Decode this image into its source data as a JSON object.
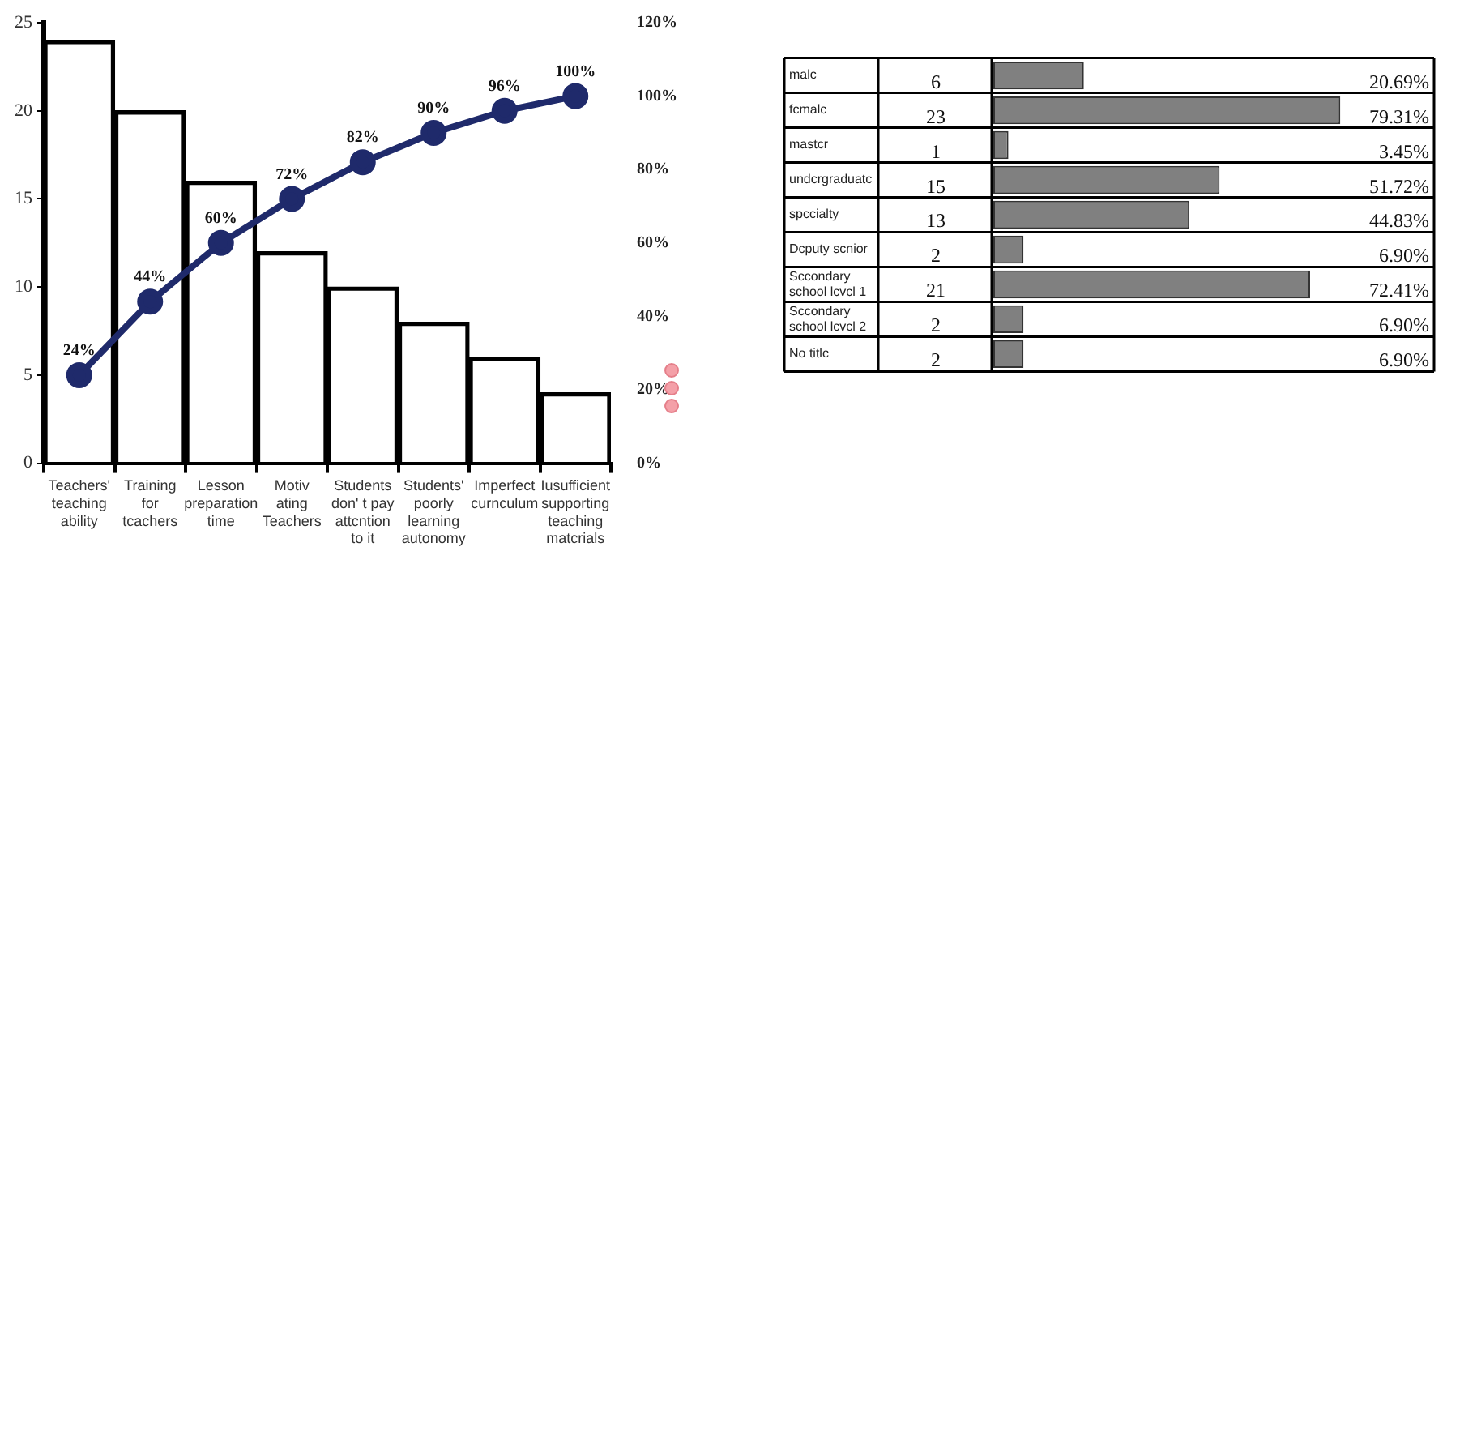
{
  "chart_data": [
    {
      "type": "bar",
      "categories": [
        "Teachers' teaching ability",
        "Training for tcachers",
        "Lesson preparation time",
        "Motiv ating Teachers",
        "Students don' t pay attcntion to it",
        "Students' poorly learning autonomy",
        "Imperfect curnculum",
        "Iusufficient supporting teaching matcrials"
      ],
      "series": [
        {
          "type": "bar",
          "color": "#000000",
          "values": [
            24,
            20,
            16,
            12,
            10,
            8,
            6,
            4
          ]
        },
        {
          "type": "line",
          "axis": "y2",
          "color": "#1f2a6b",
          "values": [
            24,
            44,
            60,
            72,
            82,
            90,
            96,
            100
          ],
          "value_labels": [
            "24%",
            "44%",
            "60%",
            "72%",
            "82%",
            "90%",
            "96%",
            "100%"
          ]
        }
      ],
      "ylim": [
        0,
        25
      ],
      "yticks": [
        0,
        5,
        10,
        15,
        20,
        25
      ],
      "y2lim": [
        0,
        120
      ],
      "y2ticks": [
        {
          "value": 0,
          "label": "0%"
        },
        {
          "value": 20,
          "label": "20%"
        },
        {
          "value": 40,
          "label": "40%"
        },
        {
          "value": 60,
          "label": "60%"
        },
        {
          "value": 80,
          "label": "80%"
        },
        {
          "value": 100,
          "label": "100%"
        },
        {
          "value": 120,
          "label": "120%"
        }
      ],
      "grid": false,
      "legend": false,
      "marker": "circle"
    },
    {
      "type": "bar",
      "orientation": "horizontal",
      "categories": [
        "malc",
        "fcmalc",
        "mastcr",
        "undcrgraduatc",
        "spccialty",
        "Dcputy scnior",
        "Sccondary school lcvcl 1",
        "Sccondary school lcvcl 2",
        "No titlc"
      ],
      "values": [
        20.69,
        79.31,
        3.45,
        51.72,
        44.83,
        6.9,
        72.41,
        6.9,
        6.9
      ],
      "value_labels": [
        "20.69%",
        "79.31%",
        "3.45%",
        "51.72%",
        "44.83%",
        "6.90%",
        "72.41%",
        "6.90%",
        "6.90%"
      ],
      "color": "#808080",
      "xlim": [
        0,
        100
      ],
      "tick_labels": "y",
      "grid": false,
      "legend": false,
      "annotations": [
        "6",
        "23",
        "1",
        "15",
        "13",
        "2",
        "21",
        "2",
        "2"
      ]
    }
  ]
}
